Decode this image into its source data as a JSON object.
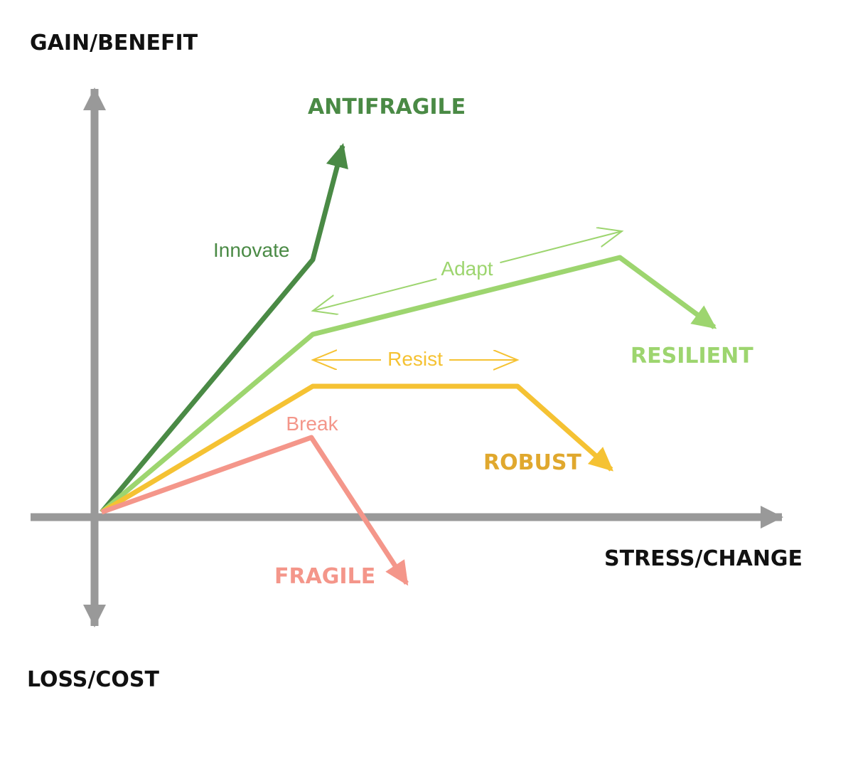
{
  "axes": {
    "y_positive": "GAIN/BENEFIT",
    "y_negative": "LOSS/COST",
    "x": "STRESS/CHANGE"
  },
  "curves": [
    {
      "label": "ANTIFRAGILE",
      "phase": "Innovate"
    },
    {
      "label": "RESILIENT",
      "phase": "Adapt"
    },
    {
      "label": "ROBUST",
      "phase": "Resist"
    },
    {
      "label": "FRAGILE",
      "phase": "Break"
    }
  ]
}
